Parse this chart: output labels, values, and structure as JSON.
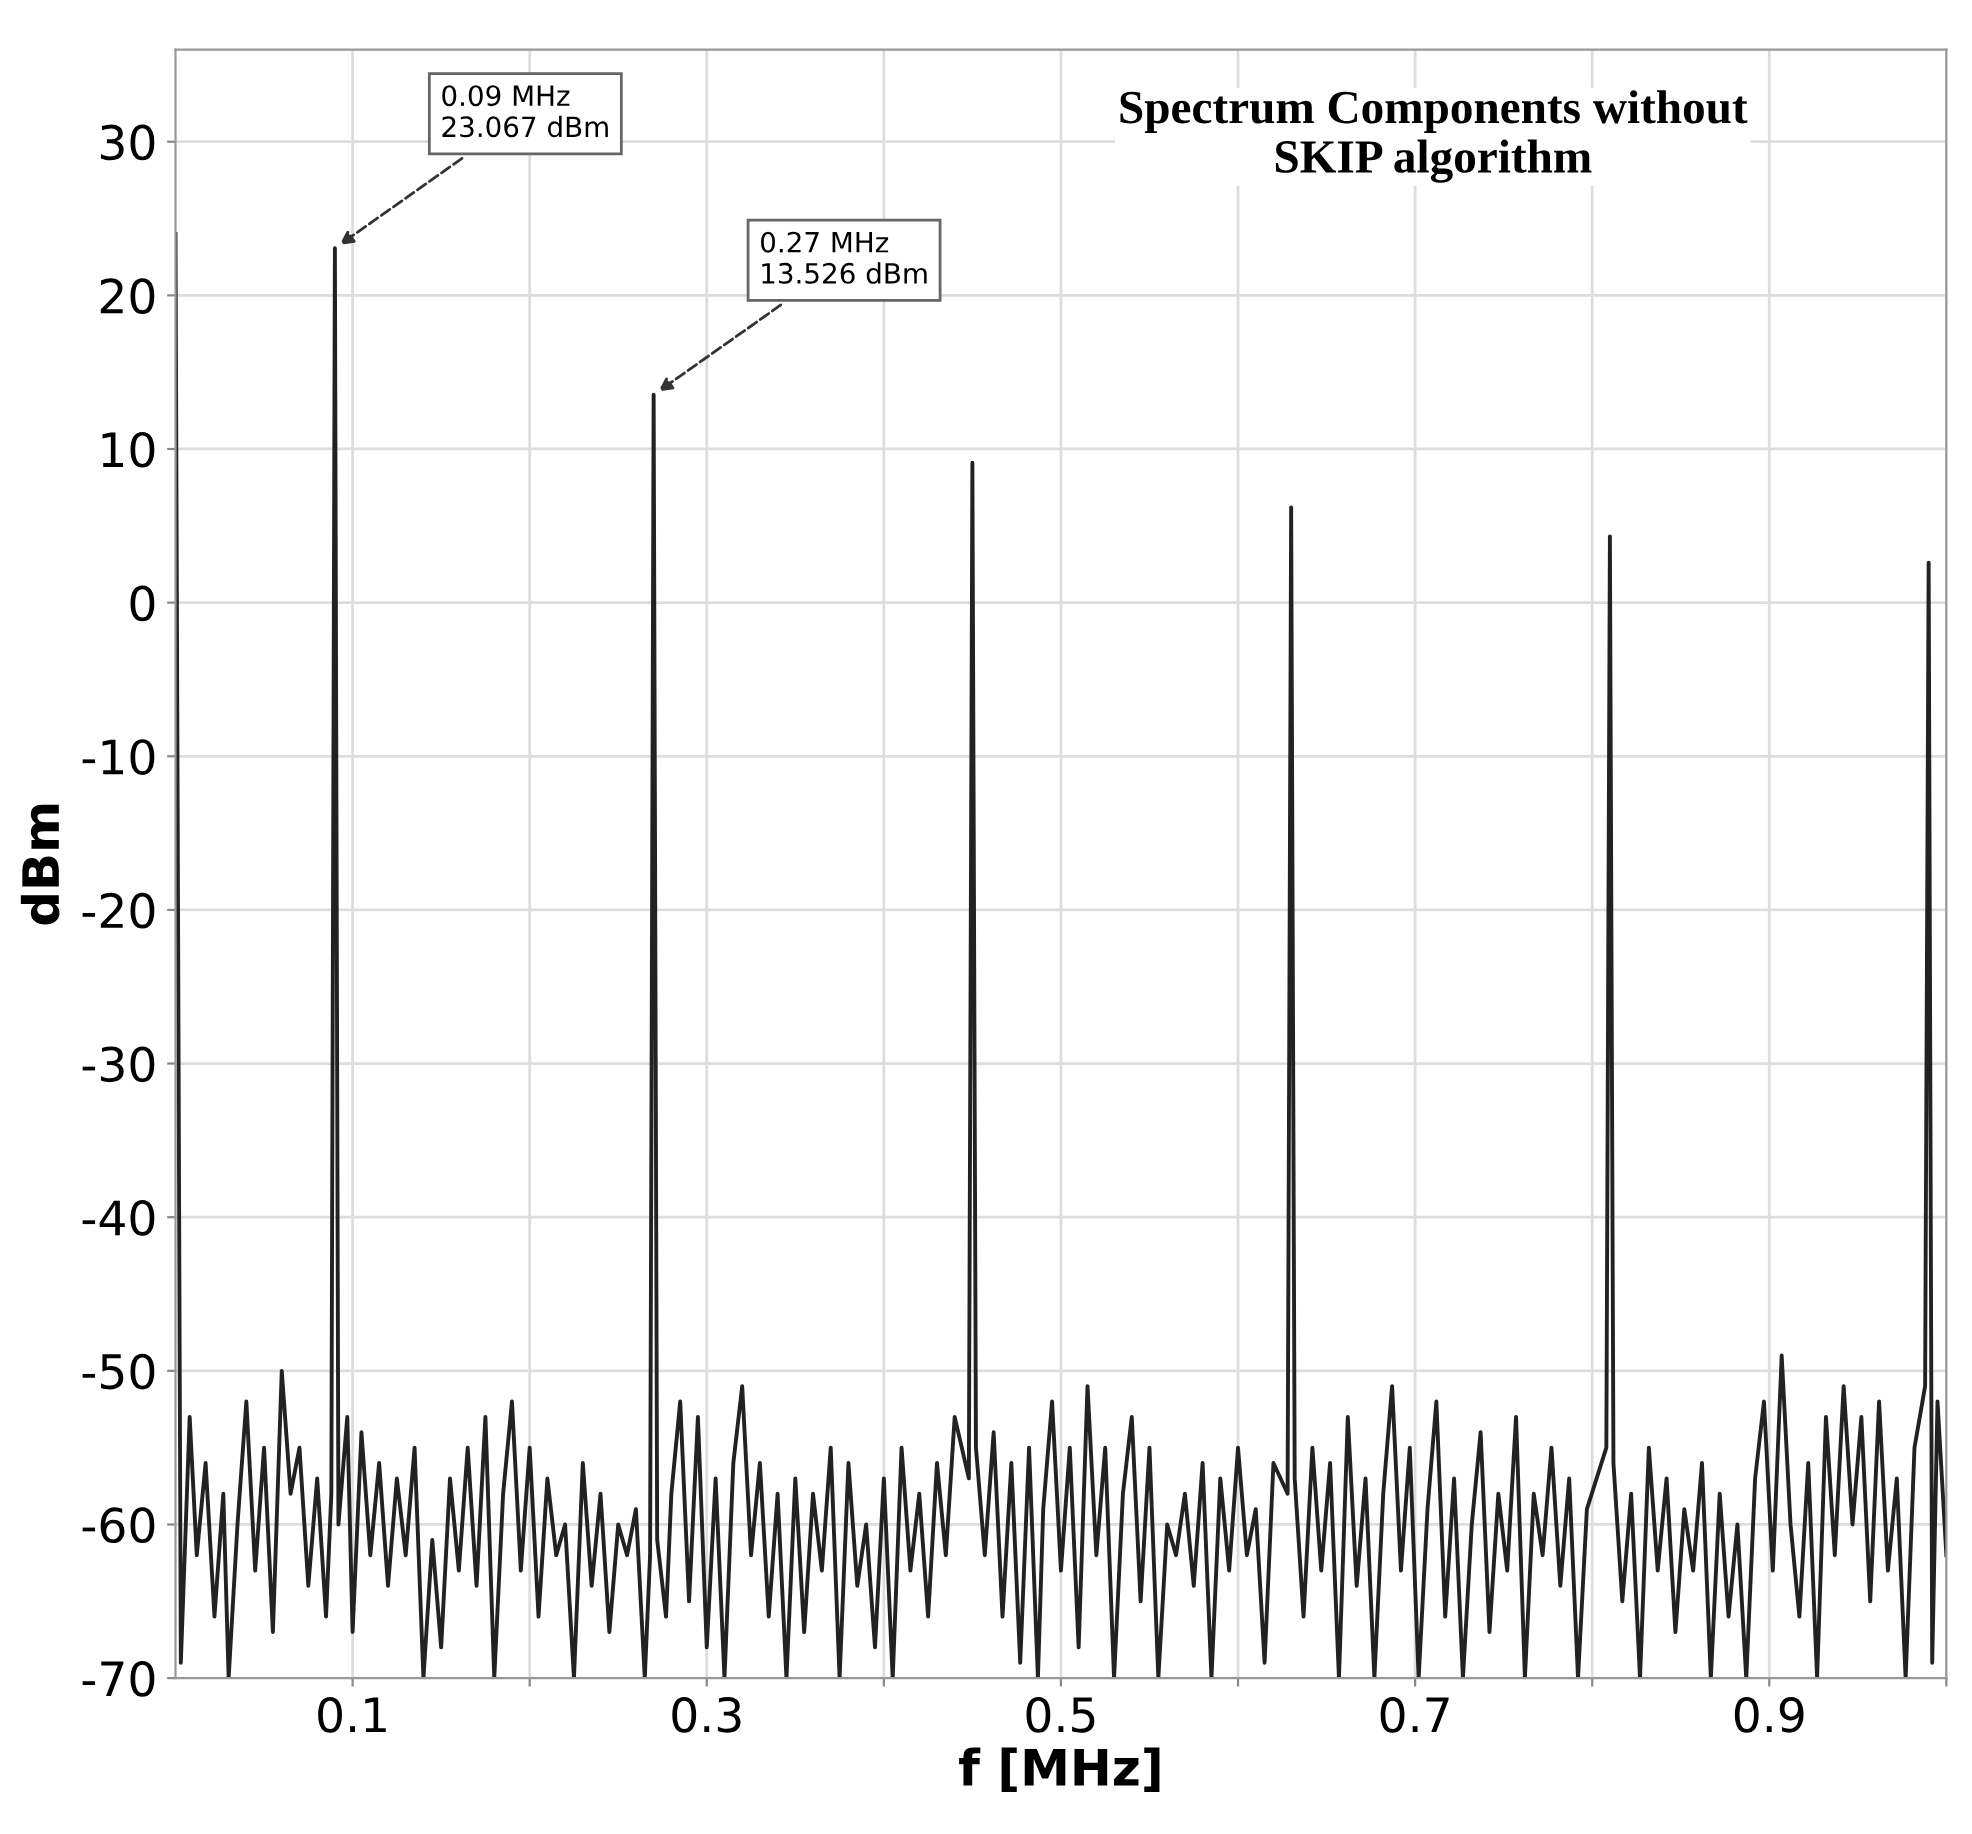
{
  "chart_data": {
    "type": "line",
    "title": "Spectrum Components without\nSKIP algorithm",
    "xlabel": "f [MHz]",
    "ylabel": "dBm",
    "xlim": [
      0,
      1
    ],
    "ylim": [
      -70,
      36
    ],
    "xticks": [
      {
        "value": 0.1,
        "label": "0.1"
      },
      {
        "value": 0.2,
        "label": null
      },
      {
        "value": 0.3,
        "label": "0.3"
      },
      {
        "value": 0.4,
        "label": null
      },
      {
        "value": 0.5,
        "label": "0.5"
      },
      {
        "value": 0.6,
        "label": null
      },
      {
        "value": 0.7,
        "label": "0.7"
      },
      {
        "value": 0.8,
        "label": null
      },
      {
        "value": 0.9,
        "label": "0.9"
      },
      {
        "value": 1.0,
        "label": null
      }
    ],
    "yticks": [
      -70,
      -60,
      -50,
      -40,
      -30,
      -20,
      -10,
      0,
      10,
      20,
      30
    ],
    "grid": true,
    "legend": false,
    "marker": "none",
    "line_style": "solid",
    "annotations": [
      {
        "text": "0.09 MHz\n23.067 dBm",
        "x": 0.09,
        "y": 23.067
      },
      {
        "text": "0.27 MHz\n13.526 dBm",
        "x": 0.27,
        "y": 13.526
      }
    ],
    "series": [
      {
        "color": "#222222",
        "x": [
          0.0,
          0.003,
          0.008,
          0.012,
          0.017,
          0.022,
          0.027,
          0.03,
          0.035,
          0.04,
          0.045,
          0.05,
          0.055,
          0.06,
          0.065,
          0.07,
          0.075,
          0.08,
          0.085,
          0.088,
          0.09,
          0.092,
          0.097,
          0.1,
          0.105,
          0.11,
          0.115,
          0.12,
          0.125,
          0.13,
          0.135,
          0.14,
          0.145,
          0.15,
          0.155,
          0.16,
          0.165,
          0.17,
          0.175,
          0.18,
          0.185,
          0.19,
          0.195,
          0.2,
          0.205,
          0.21,
          0.215,
          0.22,
          0.225,
          0.23,
          0.235,
          0.24,
          0.245,
          0.25,
          0.255,
          0.26,
          0.265,
          0.268,
          0.27,
          0.272,
          0.277,
          0.28,
          0.285,
          0.29,
          0.295,
          0.3,
          0.305,
          0.31,
          0.315,
          0.32,
          0.325,
          0.33,
          0.335,
          0.34,
          0.345,
          0.35,
          0.355,
          0.36,
          0.365,
          0.37,
          0.375,
          0.38,
          0.385,
          0.39,
          0.395,
          0.4,
          0.405,
          0.41,
          0.415,
          0.42,
          0.425,
          0.43,
          0.435,
          0.44,
          0.448,
          0.45,
          0.452,
          0.457,
          0.462,
          0.467,
          0.472,
          0.477,
          0.482,
          0.487,
          0.49,
          0.495,
          0.5,
          0.505,
          0.51,
          0.515,
          0.52,
          0.525,
          0.53,
          0.535,
          0.54,
          0.545,
          0.55,
          0.555,
          0.56,
          0.565,
          0.57,
          0.575,
          0.58,
          0.585,
          0.59,
          0.595,
          0.6,
          0.605,
          0.61,
          0.615,
          0.62,
          0.628,
          0.63,
          0.632,
          0.637,
          0.642,
          0.647,
          0.652,
          0.657,
          0.662,
          0.667,
          0.672,
          0.677,
          0.682,
          0.687,
          0.692,
          0.697,
          0.702,
          0.707,
          0.712,
          0.717,
          0.722,
          0.727,
          0.732,
          0.737,
          0.742,
          0.747,
          0.752,
          0.757,
          0.762,
          0.767,
          0.772,
          0.777,
          0.782,
          0.787,
          0.792,
          0.797,
          0.808,
          0.81,
          0.812,
          0.817,
          0.822,
          0.827,
          0.832,
          0.837,
          0.842,
          0.847,
          0.852,
          0.857,
          0.862,
          0.867,
          0.872,
          0.877,
          0.882,
          0.887,
          0.892,
          0.897,
          0.902,
          0.907,
          0.912,
          0.917,
          0.922,
          0.927,
          0.932,
          0.937,
          0.942,
          0.947,
          0.952,
          0.957,
          0.962,
          0.967,
          0.972,
          0.977,
          0.982,
          0.988,
          0.99,
          0.992,
          0.995,
          1.0
        ],
        "values": [
          24,
          -69,
          -53,
          -62,
          -56,
          -66,
          -58,
          -70,
          -60,
          -52,
          -63,
          -55,
          -67,
          -50,
          -58,
          -55,
          -64,
          -57,
          -66,
          -58,
          23.067,
          -60,
          -53,
          -67,
          -54,
          -62,
          -56,
          -64,
          -57,
          -62,
          -55,
          -70,
          -61,
          -68,
          -57,
          -63,
          -55,
          -64,
          -53,
          -70,
          -58,
          -52,
          -63,
          -55,
          -66,
          -57,
          -62,
          -60,
          -70,
          -56,
          -64,
          -58,
          -67,
          -60,
          -62,
          -59,
          -70,
          -62,
          13.526,
          -61,
          -66,
          -58,
          -52,
          -65,
          -53,
          -68,
          -57,
          -70,
          -56,
          -51,
          -62,
          -56,
          -66,
          -58,
          -70,
          -57,
          -67,
          -58,
          -63,
          -55,
          -70,
          -56,
          -64,
          -60,
          -68,
          -57,
          -70,
          -55,
          -63,
          -58,
          -66,
          -56,
          -62,
          -53,
          -57,
          9.1,
          -55,
          -62,
          -54,
          -66,
          -56,
          -69,
          -55,
          -70,
          -59,
          -52,
          -63,
          -55,
          -68,
          -51,
          -62,
          -55,
          -70,
          -58,
          -53,
          -65,
          -55,
          -70,
          -60,
          -62,
          -58,
          -64,
          -56,
          -70,
          -57,
          -63,
          -55,
          -62,
          -59,
          -69,
          -56,
          -58,
          6.2,
          -57,
          -66,
          -55,
          -63,
          -56,
          -70,
          -53,
          -64,
          -57,
          -70,
          -58,
          -51,
          -63,
          -55,
          -70,
          -59,
          -52,
          -66,
          -57,
          -70,
          -60,
          -54,
          -67,
          -58,
          -63,
          -53,
          -70,
          -58,
          -62,
          -55,
          -64,
          -57,
          -70,
          -59,
          -55,
          4.3,
          -56,
          -65,
          -58,
          -70,
          -55,
          -63,
          -57,
          -67,
          -59,
          -63,
          -56,
          -70,
          -58,
          -66,
          -60,
          -70,
          -57,
          -52,
          -63,
          -49,
          -60,
          -66,
          -56,
          -70,
          -53,
          -62,
          -51,
          -60,
          -53,
          -65,
          -52,
          -63,
          -57,
          -70,
          -55,
          -51,
          2.6,
          -69,
          -52,
          -62
        ]
      }
    ]
  }
}
